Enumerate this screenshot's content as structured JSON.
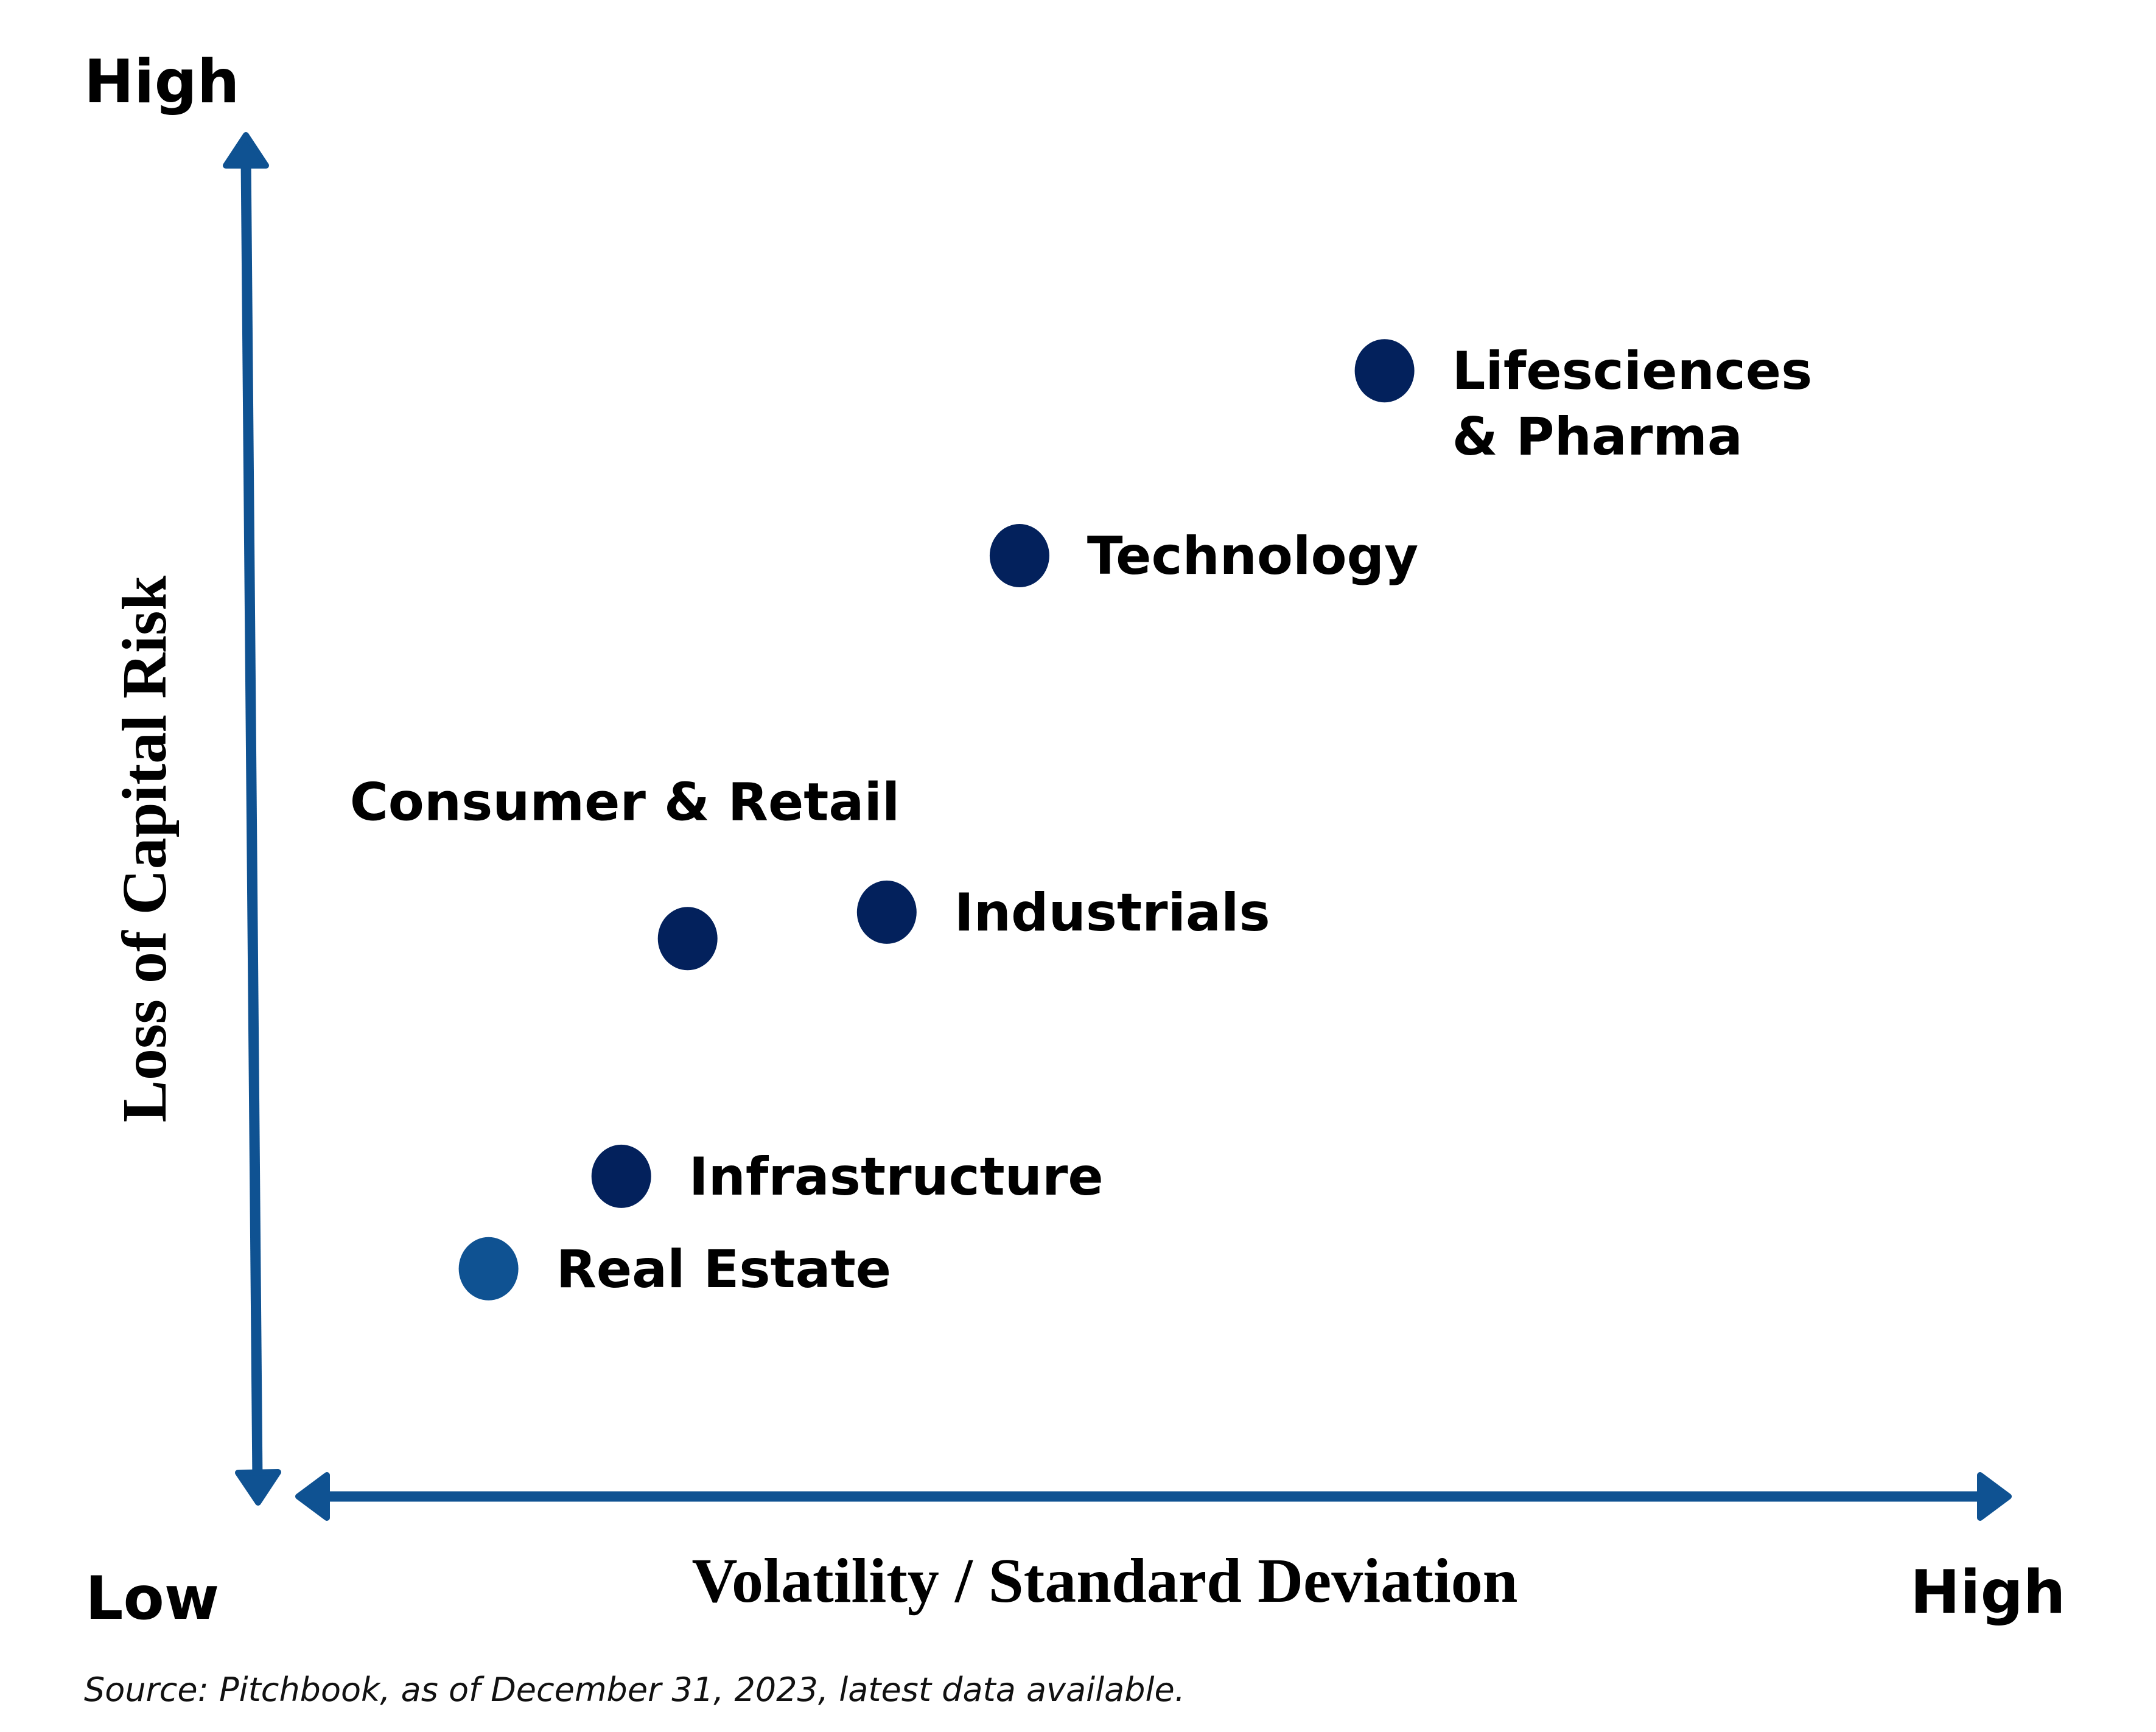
{
  "chart_data": {
    "type": "scatter",
    "title": "",
    "xlabel": "Volatility / Standard Deviation",
    "ylabel": "Loss of Capital Risk",
    "x_scale": "qualitative (Low to High)",
    "y_scale": "qualitative (Low to High)",
    "xlim": [
      0,
      100
    ],
    "ylim": [
      0,
      100
    ],
    "grid": false,
    "legend": "none (direct labels)",
    "axis_end_labels": {
      "y_high": "High",
      "origin_low": "Low",
      "x_high": "High"
    },
    "points": [
      {
        "name": "Lifesciences & Pharma",
        "label_lines": [
          "Lifesciences",
          "& Pharma"
        ],
        "x": 64,
        "y": 84,
        "color": "#03215C",
        "label_position": "right"
      },
      {
        "name": "Technology",
        "label_lines": [
          "Technology"
        ],
        "x": 42,
        "y": 70,
        "color": "#03215C",
        "label_position": "right"
      },
      {
        "name": "Consumer & Retail",
        "label_lines": [
          "Consumer & Retail"
        ],
        "x": 22,
        "y": 41,
        "color": "#03215C",
        "label_position": "above"
      },
      {
        "name": "Industrials",
        "label_lines": [
          "Industrials"
        ],
        "x": 34,
        "y": 43,
        "color": "#03215C",
        "label_position": "right"
      },
      {
        "name": "Infrastructure",
        "label_lines": [
          "Infrastructure"
        ],
        "x": 18,
        "y": 23,
        "color": "#03215C",
        "label_position": "right"
      },
      {
        "name": "Real Estate",
        "label_lines": [
          "Real Estate"
        ],
        "x": 10,
        "y": 16,
        "color": "#0F5292",
        "label_position": "right"
      }
    ],
    "source": "Source: Pitchbook, as of December 31, 2023, latest data available."
  },
  "colors": {
    "axis": "#0F5292",
    "point_dark": "#03215C",
    "point_light": "#0F5292",
    "text": "#000000"
  }
}
